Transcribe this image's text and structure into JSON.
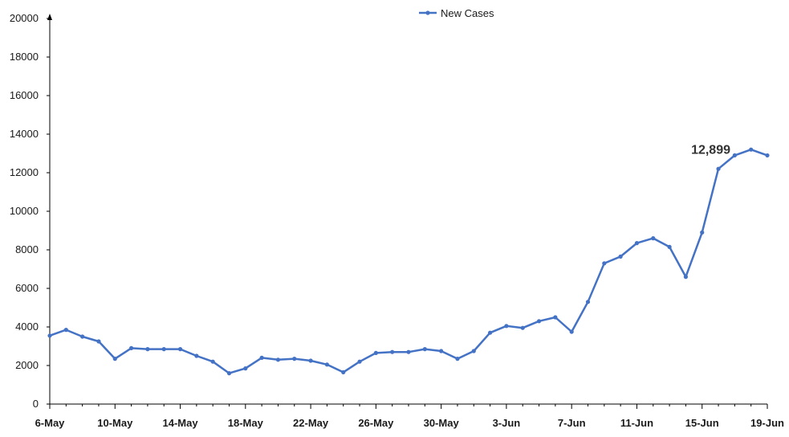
{
  "chart_data": {
    "type": "line",
    "title": "",
    "xlabel": "",
    "ylabel": "",
    "ylim": [
      0,
      20000
    ],
    "yticks": [
      0,
      2000,
      4000,
      6000,
      8000,
      10000,
      12000,
      14000,
      16000,
      18000,
      20000
    ],
    "ytick_labels": [
      "0",
      "2000",
      "4000",
      "6000",
      "8000",
      "10000",
      "12000",
      "14000",
      "16000",
      "18000",
      "20000"
    ],
    "x_tick_labels": [
      "6-May",
      "10-May",
      "14-May",
      "18-May",
      "22-May",
      "26-May",
      "30-May",
      "3-Jun",
      "7-Jun",
      "11-Jun",
      "15-Jun",
      "19-Jun"
    ],
    "x_tick_every": 4,
    "grid": false,
    "legend_position": "top-center",
    "series": [
      {
        "name": "New Cases",
        "color": "#4472c4",
        "x": [
          "6-May",
          "7-May",
          "8-May",
          "9-May",
          "10-May",
          "11-May",
          "12-May",
          "13-May",
          "14-May",
          "15-May",
          "16-May",
          "17-May",
          "18-May",
          "19-May",
          "20-May",
          "21-May",
          "22-May",
          "23-May",
          "24-May",
          "25-May",
          "26-May",
          "27-May",
          "28-May",
          "29-May",
          "30-May",
          "31-May",
          "1-Jun",
          "2-Jun",
          "3-Jun",
          "4-Jun",
          "5-Jun",
          "6-Jun",
          "7-Jun",
          "8-Jun",
          "9-Jun",
          "10-Jun",
          "11-Jun",
          "12-Jun",
          "13-Jun",
          "14-Jun",
          "15-Jun",
          "16-Jun",
          "17-Jun",
          "18-Jun",
          "19-Jun"
        ],
        "values": [
          3550,
          3850,
          3500,
          3250,
          2350,
          2900,
          2850,
          2850,
          2850,
          2500,
          2200,
          1600,
          1850,
          2400,
          2300,
          2350,
          2250,
          2050,
          1650,
          2200,
          2650,
          2700,
          2700,
          2850,
          2750,
          2350,
          2750,
          3700,
          4050,
          3950,
          4300,
          4500,
          3750,
          5300,
          7300,
          7650,
          8350,
          8600,
          8150,
          6600,
          8900,
          12200,
          12900,
          13200,
          12899
        ]
      }
    ],
    "annotations": [
      {
        "text": "12,899",
        "x": "19-Jun",
        "y": 12899
      }
    ]
  }
}
